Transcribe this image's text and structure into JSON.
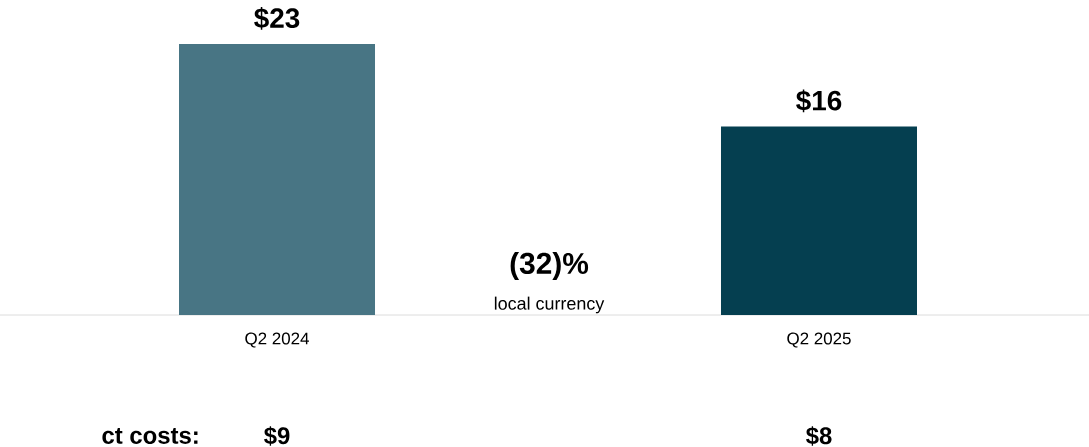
{
  "chart_data": {
    "type": "bar",
    "categories": [
      "Q2 2024",
      "Q2 2025"
    ],
    "values": [
      23,
      16
    ],
    "colors": [
      "#487584",
      "#053f50"
    ],
    "value_labels": [
      "$23",
      "$16"
    ],
    "annotations": [
      "(32)%",
      "local currency",
      "ct costs:",
      "$9",
      "$8"
    ]
  }
}
